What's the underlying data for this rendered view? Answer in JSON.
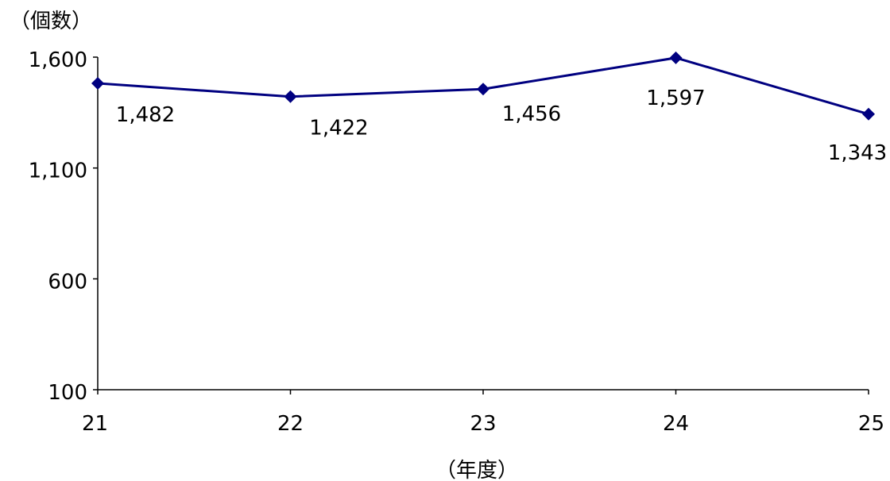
{
  "chart_data": {
    "type": "line",
    "categories": [
      "21",
      "22",
      "23",
      "24",
      "25"
    ],
    "series": [
      {
        "values": [
          1482,
          1422,
          1456,
          1597,
          1343
        ],
        "color": "#000080"
      }
    ],
    "data_labels": [
      "1,482",
      "1,422",
      "1,456",
      "1,597",
      "1,343"
    ],
    "ylabel": "（個数）",
    "xlabel": "（年度）",
    "ylim": [
      100,
      1600
    ],
    "yticks": [
      100,
      600,
      1100,
      1600
    ],
    "ytick_labels": [
      "100",
      "600",
      "1,100",
      "1,600"
    ],
    "marker": "diamond",
    "grid": false
  }
}
